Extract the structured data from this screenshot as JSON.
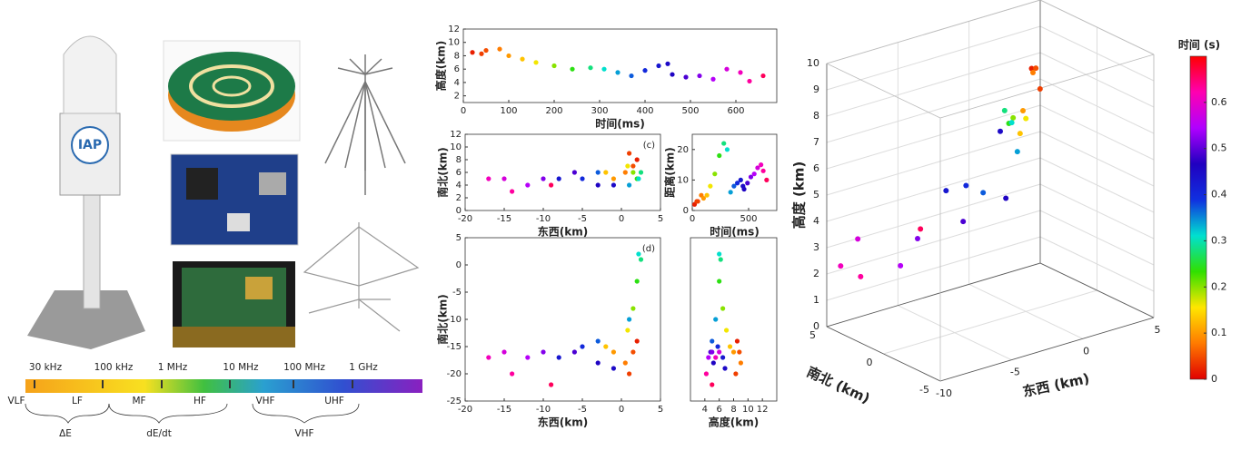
{
  "logo_text": "IAP",
  "spectrum": {
    "frequencies": [
      "30 kHz",
      "100 kHz",
      "1 MHz",
      "10 MHz",
      "100 MHz",
      "1 GHz"
    ],
    "bands": [
      "VLF",
      "LF",
      "MF",
      "HF",
      "VHF",
      "UHF"
    ],
    "groups": [
      "ΔE",
      "dE/dt",
      "VHF"
    ]
  },
  "chart_data": [
    {
      "type": "scatter",
      "xlabel": "时间(ms)",
      "ylabel": "高度(km)",
      "x": [
        20,
        50,
        80,
        100,
        130,
        160,
        200,
        240,
        280,
        310,
        340,
        370,
        400,
        430,
        460,
        490,
        520,
        550,
        580,
        610,
        630,
        660,
        40,
        450
      ],
      "y": [
        8.5,
        8.8,
        9.0,
        8.0,
        7.5,
        7.0,
        6.5,
        6.0,
        6.2,
        6.0,
        5.5,
        5.0,
        5.8,
        6.5,
        5.2,
        4.8,
        5.0,
        4.5,
        6.0,
        5.5,
        4.2,
        5.0,
        8.3,
        6.8
      ],
      "c": [
        0.02,
        0.05,
        0.08,
        0.1,
        0.13,
        0.16,
        0.2,
        0.24,
        0.28,
        0.31,
        0.34,
        0.37,
        0.4,
        0.43,
        0.46,
        0.49,
        0.52,
        0.55,
        0.58,
        0.61,
        0.63,
        0.66,
        0.04,
        0.45
      ],
      "xlim": [
        0,
        690
      ],
      "xticks": [
        0,
        100,
        200,
        300,
        400,
        500,
        600
      ],
      "ylim": [
        1,
        12
      ],
      "yticks": [
        2,
        4,
        6,
        8,
        10,
        12
      ]
    },
    {
      "type": "scatter",
      "panel_label": "(c)",
      "xlabel": "东西(km)",
      "ylabel": "南北(km)",
      "x": [
        2.0,
        1.5,
        0.5,
        -1,
        -2,
        0.8,
        1.5,
        2.0,
        2.5,
        2.2,
        1.0,
        -3,
        -5,
        -8,
        -3,
        -6,
        -10,
        -12,
        -15,
        -17,
        -14,
        -9,
        1,
        -1
      ],
      "y": [
        8,
        7,
        6,
        5,
        6,
        7,
        6,
        5,
        6,
        5,
        4,
        6,
        5,
        5,
        4,
        6,
        5,
        4,
        5,
        5,
        3,
        4,
        9,
        4
      ],
      "c": [
        0.02,
        0.05,
        0.08,
        0.1,
        0.13,
        0.16,
        0.2,
        0.24,
        0.28,
        0.31,
        0.34,
        0.37,
        0.4,
        0.43,
        0.46,
        0.49,
        0.52,
        0.55,
        0.58,
        0.61,
        0.63,
        0.66,
        0.04,
        0.45
      ],
      "xlim": [
        -20,
        5
      ],
      "xticks": [
        -20,
        -15,
        -10,
        -5,
        0,
        5
      ],
      "ylim": [
        0,
        12
      ],
      "yticks": [
        0,
        2,
        4,
        6,
        8,
        10,
        12
      ]
    },
    {
      "type": "scatter",
      "xlabel": "时间(ms)",
      "ylabel": "距离(km)",
      "x": [
        20,
        50,
        80,
        100,
        130,
        160,
        200,
        240,
        280,
        310,
        340,
        370,
        400,
        430,
        460,
        490,
        520,
        550,
        580,
        610,
        630,
        660,
        40,
        450
      ],
      "y": [
        2,
        3,
        5,
        4,
        5,
        8,
        12,
        18,
        22,
        20,
        6,
        8,
        9,
        10,
        7,
        9,
        11,
        12,
        14,
        15,
        13,
        10,
        3,
        8
      ],
      "c": [
        0.02,
        0.05,
        0.08,
        0.1,
        0.13,
        0.16,
        0.2,
        0.24,
        0.28,
        0.31,
        0.34,
        0.37,
        0.4,
        0.43,
        0.46,
        0.49,
        0.52,
        0.55,
        0.58,
        0.61,
        0.63,
        0.66,
        0.04,
        0.45
      ],
      "xlim": [
        0,
        750
      ],
      "xticks": [
        0,
        500
      ],
      "ylim": [
        0,
        25
      ],
      "yticks": [
        0,
        10,
        20
      ]
    },
    {
      "type": "scatter",
      "panel_label": "(d)",
      "xlabel": "东西(km)",
      "ylabel": "南北(km)",
      "x": [
        2.0,
        1.5,
        0.5,
        -1,
        -2,
        0.8,
        1.5,
        2.0,
        2.5,
        2.2,
        1.0,
        -3,
        -5,
        -8,
        -3,
        -6,
        -10,
        -12,
        -15,
        -17,
        -14,
        -9,
        1,
        -1
      ],
      "y": [
        -14,
        -16,
        -18,
        -16,
        -15,
        -12,
        -8,
        -3,
        1,
        2,
        -10,
        -14,
        -15,
        -17,
        -18,
        -16,
        -16,
        -17,
        -16,
        -17,
        -20,
        -22,
        -20,
        -19
      ],
      "c": [
        0.02,
        0.05,
        0.08,
        0.1,
        0.13,
        0.16,
        0.2,
        0.24,
        0.28,
        0.31,
        0.34,
        0.37,
        0.4,
        0.43,
        0.46,
        0.49,
        0.52,
        0.55,
        0.58,
        0.61,
        0.63,
        0.66,
        0.04,
        0.45
      ],
      "xlim": [
        -20,
        5
      ],
      "xticks": [
        -20,
        -15,
        -10,
        -5,
        0,
        5
      ],
      "ylim": [
        -25,
        5
      ],
      "yticks": [
        -25,
        -20,
        -15,
        -10,
        -5,
        0,
        5
      ]
    },
    {
      "type": "scatter",
      "xlabel": "高度(km)",
      "x": [
        8.5,
        8.8,
        9.0,
        8.0,
        7.5,
        7.0,
        6.5,
        6.0,
        6.2,
        6.0,
        5.5,
        5.0,
        5.8,
        6.5,
        5.2,
        4.8,
        5.0,
        4.5,
        6.0,
        5.5,
        4.2,
        5.0,
        8.3,
        6.8
      ],
      "y": [
        -14,
        -16,
        -18,
        -16,
        -15,
        -12,
        -8,
        -3,
        1,
        2,
        -10,
        -14,
        -15,
        -17,
        -18,
        -16,
        -16,
        -17,
        -16,
        -17,
        -20,
        -22,
        -20,
        -19
      ],
      "c": [
        0.02,
        0.05,
        0.08,
        0.1,
        0.13,
        0.16,
        0.2,
        0.24,
        0.28,
        0.31,
        0.34,
        0.37,
        0.4,
        0.43,
        0.46,
        0.49,
        0.52,
        0.55,
        0.58,
        0.61,
        0.63,
        0.66,
        0.04,
        0.45
      ],
      "xlim": [
        2,
        14
      ],
      "xticks": [
        4,
        6,
        8,
        10,
        12
      ],
      "ylim": [
        -25,
        5
      ]
    },
    {
      "type": "scatter3d",
      "xlabel": "东西 (km)",
      "ylabel": "南北 (km)",
      "zlabel": "高度 (km)",
      "x": [
        2.0,
        1.5,
        0.5,
        -1,
        -2,
        0.8,
        1.5,
        2.0,
        2.5,
        2.2,
        1.0,
        -3,
        -5,
        -8,
        -3,
        -6,
        -10,
        -12,
        -15,
        -17,
        -14,
        -9,
        1,
        -1
      ],
      "y": [
        2,
        1,
        0,
        -1,
        -2,
        1,
        3,
        4,
        5,
        4,
        2,
        0,
        -1,
        -3,
        -2,
        -2,
        -3,
        -4,
        -4,
        -5,
        -3,
        -2,
        0,
        1
      ],
      "z": [
        8.5,
        8.8,
        9.0,
        8.0,
        7.5,
        7.0,
        6.5,
        6.0,
        6.2,
        6.0,
        5.5,
        5.0,
        5.8,
        6.5,
        5.2,
        4.8,
        5.0,
        4.5,
        6.0,
        5.5,
        4.2,
        5.0,
        8.3,
        6.8
      ],
      "c": [
        0.02,
        0.05,
        0.08,
        0.1,
        0.13,
        0.16,
        0.2,
        0.24,
        0.28,
        0.31,
        0.34,
        0.37,
        0.4,
        0.43,
        0.46,
        0.49,
        0.52,
        0.55,
        0.58,
        0.61,
        0.63,
        0.66,
        0.04,
        0.45
      ],
      "xlim": [
        -10,
        5
      ],
      "xticks": [
        -10,
        -5,
        0,
        5
      ],
      "ylim": [
        -5,
        5
      ],
      "yticks": [
        -5,
        0,
        5
      ],
      "zlim": [
        0,
        10
      ],
      "zticks": [
        0,
        1,
        2,
        3,
        4,
        5,
        6,
        7,
        8,
        9,
        10
      ],
      "grid": true
    }
  ],
  "colorbar": {
    "title": "时间 (s)",
    "clim": [
      0,
      0.7
    ],
    "ticks": [
      0,
      0.1,
      0.2,
      0.3,
      0.4,
      0.5,
      0.6
    ],
    "stops": [
      "#e00000",
      "#ff7a00",
      "#ffe600",
      "#30e000",
      "#00e0d0",
      "#1030e0",
      "#2000c0",
      "#b000ff",
      "#ff00b0",
      "#ff0000"
    ]
  }
}
